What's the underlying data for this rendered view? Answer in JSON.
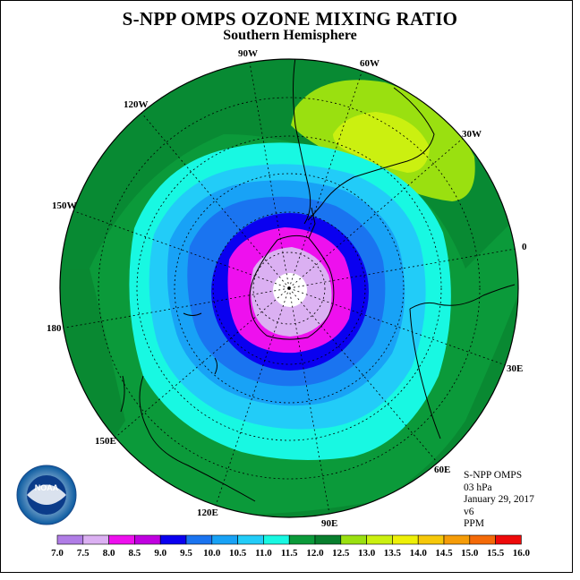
{
  "header": {
    "title": "S-NPP OMPS OZONE MIXING RATIO",
    "subtitle": "Southern Hemisphere"
  },
  "info": {
    "instrument": "S-NPP OMPS",
    "level": "03 hPa",
    "date": "January 29, 2017",
    "version": "v6",
    "units": "PPM"
  },
  "longitude_labels": [
    "90W",
    "60W",
    "30W",
    "0",
    "30E",
    "60E",
    "90E",
    "120E",
    "150E",
    "180",
    "150W",
    "120W"
  ],
  "colorbar": {
    "ticks": [
      "7.0",
      "7.5",
      "8.0",
      "8.5",
      "9.0",
      "9.5",
      "10.0",
      "10.5",
      "11.0",
      "11.5",
      "12.0",
      "12.5",
      "13.0",
      "13.5",
      "14.0",
      "14.5",
      "15.0",
      "15.5",
      "16.0"
    ],
    "colors": [
      "#b07de6",
      "#dbb0f2",
      "#ee10ee",
      "#c000e0",
      "#0a00f0",
      "#1a74f0",
      "#18a2f6",
      "#22ccf8",
      "#18f8e2",
      "#0b9a3a",
      "#087e2d",
      "#9ae010",
      "#cbf010",
      "#eef008",
      "#f6c80a",
      "#f59c08",
      "#f46a08",
      "#ee0a0a",
      "#8c4c2c"
    ]
  },
  "logo": {
    "text": "NOAA"
  }
}
